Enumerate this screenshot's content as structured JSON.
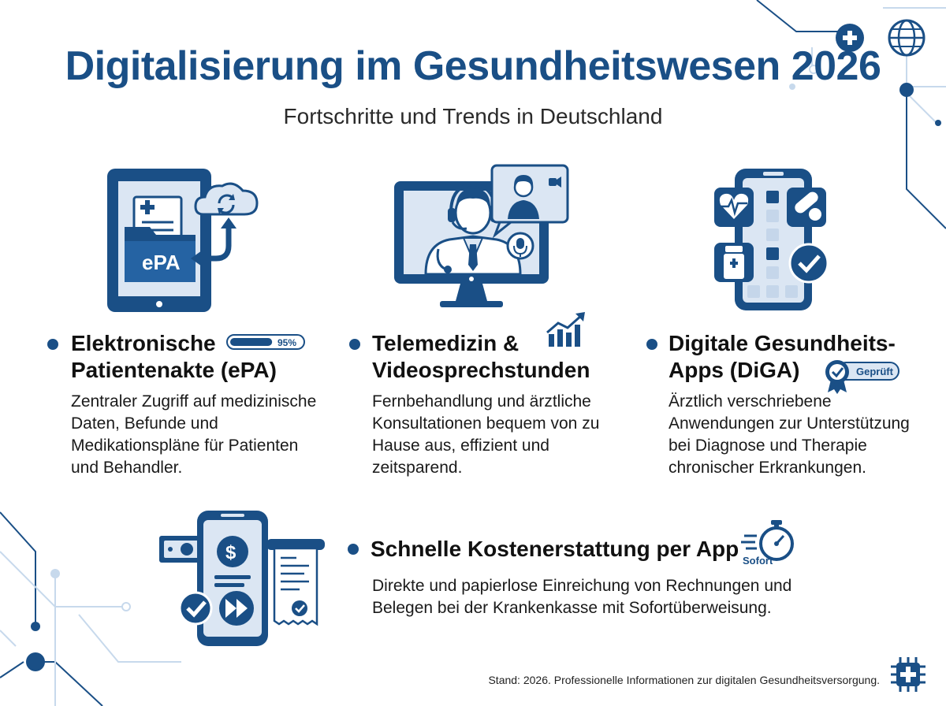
{
  "page": {
    "title": "Digitalisierung im Gesundheitswesen 2026",
    "subtitle": "Fortschritte und Trends in Deutschland"
  },
  "sections": [
    {
      "heading_line1": "Elektronische",
      "heading_line2": "Patientenakte (ePA)",
      "badge": "95%",
      "badge_progress_percent": 95,
      "icon_label": "ePA",
      "description_lines": [
        "Zentraler Zugriff auf medizinische",
        "Daten, Befunde und",
        "Medikationspläne für Patienten",
        "und Behandler."
      ]
    },
    {
      "heading_line1": "Telemedizin &",
      "heading_line2": "Videosprechstunden",
      "description_lines": [
        "Fernbehandlung und ärztliche",
        "Konsultationen bequem von zu",
        "Hause aus, effizient und",
        "zeitsparend."
      ]
    },
    {
      "heading_line1": "Digitale Gesundheits-",
      "heading_line2": "Apps (DiGA)",
      "badge": "Geprüft",
      "description_lines": [
        "Ärztlich verschriebene",
        "Anwendungen zur Unterstützung",
        "bei Diagnose und Therapie",
        "chronischer Erkrankungen."
      ]
    },
    {
      "heading_line1": "Schnelle Kostenerstattung per App",
      "badge": "Sofort",
      "description_lines": [
        "Direkte und papierlose Einreichung von Rechnungen und",
        "Belegen bei der Krankenkasse mit Sofortüberweisung."
      ]
    }
  ],
  "footer": "Stand: 2026. Professionelle Informationen zur digitalen Gesundheitsversorgung.",
  "colors": {
    "primary": "#1a4f86",
    "light": "#dbe6f3",
    "dark": "#143a66"
  },
  "icons": [
    "tablet-folder-icon",
    "cloud-sync-icon",
    "telemedicine-monitor-icon",
    "chat-bubble-icon",
    "microphone-icon",
    "trend-chart-icon",
    "smartphone-apps-icon",
    "heart-pulse-icon",
    "pills-icon",
    "medicine-bottle-icon",
    "check-circle-icon",
    "award-badge-icon",
    "payment-phone-icon",
    "banknote-icon",
    "receipt-icon",
    "fast-forward-icon",
    "stopwatch-icon",
    "medical-chip-icon",
    "globe-icon",
    "medical-cross-icon"
  ]
}
